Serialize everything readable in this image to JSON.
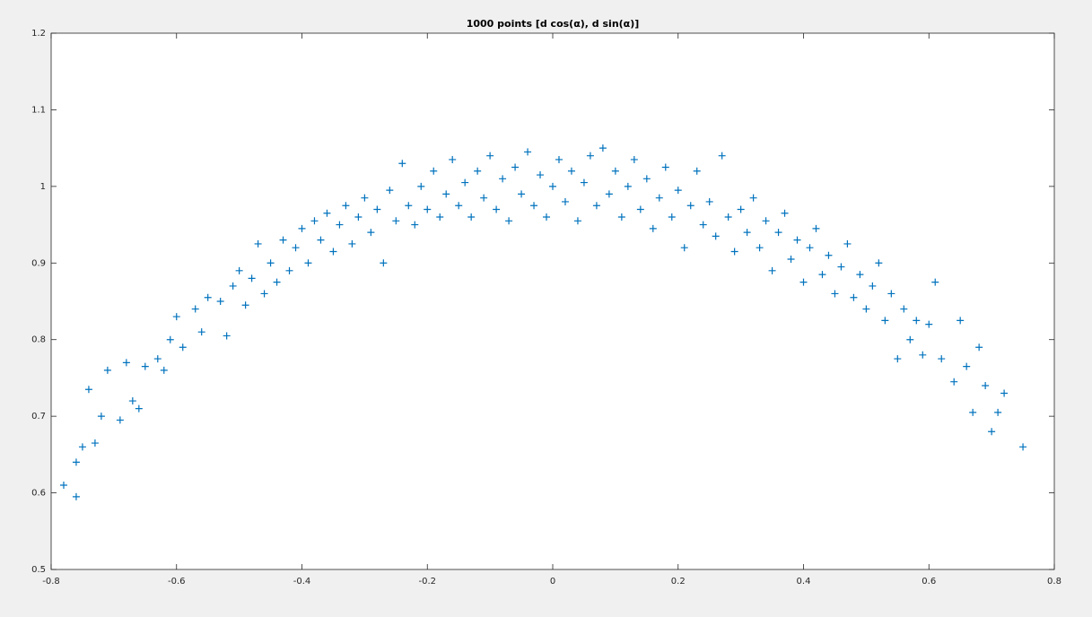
{
  "chart_data": {
    "type": "scatter",
    "title": "1000 points [d cos(α), d sin(α)]",
    "marker": "+",
    "color": "#0072bd",
    "xlim": [
      -0.8,
      0.8
    ],
    "ylim": [
      0.5,
      1.2
    ],
    "xticks": [
      -0.8,
      -0.6,
      -0.4,
      -0.2,
      0,
      0.2,
      0.4,
      0.6,
      0.8
    ],
    "yticks": [
      0.5,
      0.6,
      0.7,
      0.8,
      0.9,
      1,
      1.1,
      1.2
    ],
    "x": [
      -0.78,
      -0.76,
      -0.76,
      -0.75,
      -0.74,
      -0.73,
      -0.72,
      -0.71,
      -0.69,
      -0.68,
      -0.67,
      -0.66,
      -0.65,
      -0.63,
      -0.62,
      -0.61,
      -0.6,
      -0.59,
      -0.57,
      -0.56,
      -0.55,
      -0.53,
      -0.52,
      -0.51,
      -0.5,
      -0.49,
      -0.48,
      -0.47,
      -0.46,
      -0.45,
      -0.44,
      -0.43,
      -0.42,
      -0.41,
      -0.4,
      -0.39,
      -0.38,
      -0.37,
      -0.36,
      -0.35,
      -0.34,
      -0.33,
      -0.32,
      -0.31,
      -0.3,
      -0.29,
      -0.28,
      -0.27,
      -0.26,
      -0.25,
      -0.24,
      -0.23,
      -0.22,
      -0.21,
      -0.2,
      -0.19,
      -0.18,
      -0.17,
      -0.16,
      -0.15,
      -0.14,
      -0.13,
      -0.12,
      -0.11,
      -0.1,
      -0.09,
      -0.08,
      -0.07,
      -0.06,
      -0.05,
      -0.04,
      -0.03,
      -0.02,
      -0.01,
      0,
      0.01,
      0.02,
      0.03,
      0.04,
      0.05,
      0.06,
      0.07,
      0.08,
      0.09,
      0.1,
      0.11,
      0.12,
      0.13,
      0.14,
      0.15,
      0.16,
      0.17,
      0.18,
      0.19,
      0.2,
      0.21,
      0.22,
      0.23,
      0.24,
      0.25,
      0.26,
      0.27,
      0.28,
      0.29,
      0.3,
      0.31,
      0.32,
      0.33,
      0.34,
      0.35,
      0.36,
      0.37,
      0.38,
      0.39,
      0.4,
      0.41,
      0.42,
      0.43,
      0.44,
      0.45,
      0.46,
      0.47,
      0.48,
      0.49,
      0.5,
      0.51,
      0.52,
      0.53,
      0.54,
      0.55,
      0.56,
      0.57,
      0.58,
      0.59,
      0.6,
      0.61,
      0.62,
      0.64,
      0.65,
      0.66,
      0.67,
      0.68,
      0.69,
      0.7,
      0.71,
      0.72,
      0.75
    ],
    "y": [
      0.61,
      0.595,
      0.64,
      0.66,
      0.735,
      0.665,
      0.7,
      0.76,
      0.695,
      0.77,
      0.72,
      0.71,
      0.765,
      0.775,
      0.76,
      0.8,
      0.83,
      0.79,
      0.84,
      0.81,
      0.855,
      0.85,
      0.805,
      0.87,
      0.89,
      0.845,
      0.88,
      0.925,
      0.86,
      0.9,
      0.875,
      0.93,
      0.89,
      0.92,
      0.945,
      0.9,
      0.955,
      0.93,
      0.965,
      0.915,
      0.95,
      0.975,
      0.925,
      0.96,
      0.985,
      0.94,
      0.97,
      0.9,
      0.995,
      0.955,
      1.03,
      0.975,
      0.95,
      1.0,
      0.97,
      1.02,
      0.96,
      0.99,
      1.035,
      0.975,
      1.005,
      0.96,
      1.02,
      0.985,
      1.04,
      0.97,
      1.01,
      0.955,
      1.025,
      0.99,
      1.045,
      0.975,
      1.015,
      0.96,
      1.0,
      1.035,
      0.98,
      1.02,
      0.955,
      1.005,
      1.04,
      0.975,
      1.05,
      0.99,
      1.02,
      0.96,
      1.0,
      1.035,
      0.97,
      1.01,
      0.945,
      0.985,
      1.025,
      0.96,
      0.995,
      0.92,
      0.975,
      1.02,
      0.95,
      0.98,
      0.935,
      1.04,
      0.96,
      0.915,
      0.97,
      0.94,
      0.985,
      0.92,
      0.955,
      0.89,
      0.94,
      0.965,
      0.905,
      0.93,
      0.875,
      0.92,
      0.945,
      0.885,
      0.91,
      0.86,
      0.895,
      0.925,
      0.855,
      0.885,
      0.84,
      0.87,
      0.9,
      0.825,
      0.86,
      0.775,
      0.84,
      0.8,
      0.825,
      0.78,
      0.82,
      0.875,
      0.775,
      0.745,
      0.825,
      0.765,
      0.705,
      0.79,
      0.74,
      0.68,
      0.705,
      0.73,
      0.66
    ]
  }
}
